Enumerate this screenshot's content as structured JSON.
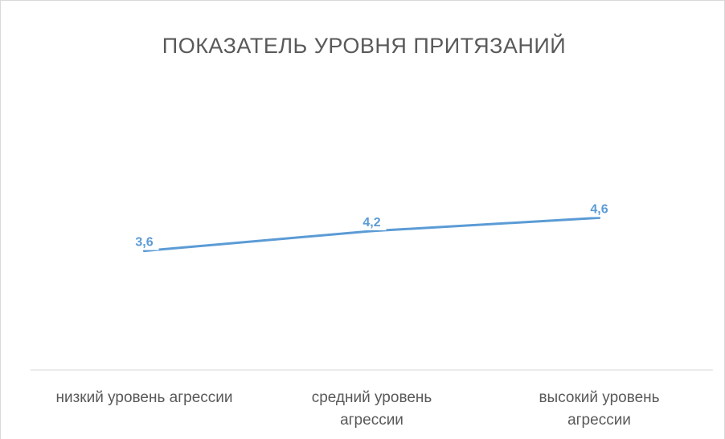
{
  "chart_data": {
    "type": "line",
    "title": "ПОКАЗАТЕЛЬ УРОВНЯ ПРИТЯЗАНИЙ",
    "categories": [
      [
        "низкий уровень агрессии"
      ],
      [
        "средний уровень",
        "агрессии"
      ],
      [
        "высокий уровень",
        "агрессии"
      ]
    ],
    "series": [
      {
        "values": [
          3.6,
          4.2,
          4.6
        ],
        "data_labels": [
          "3,6",
          "4,2",
          "4,6"
        ],
        "color": "#5b9bd5"
      }
    ],
    "ylim": [
      0,
      9
    ],
    "grid": false,
    "legend": "none"
  }
}
